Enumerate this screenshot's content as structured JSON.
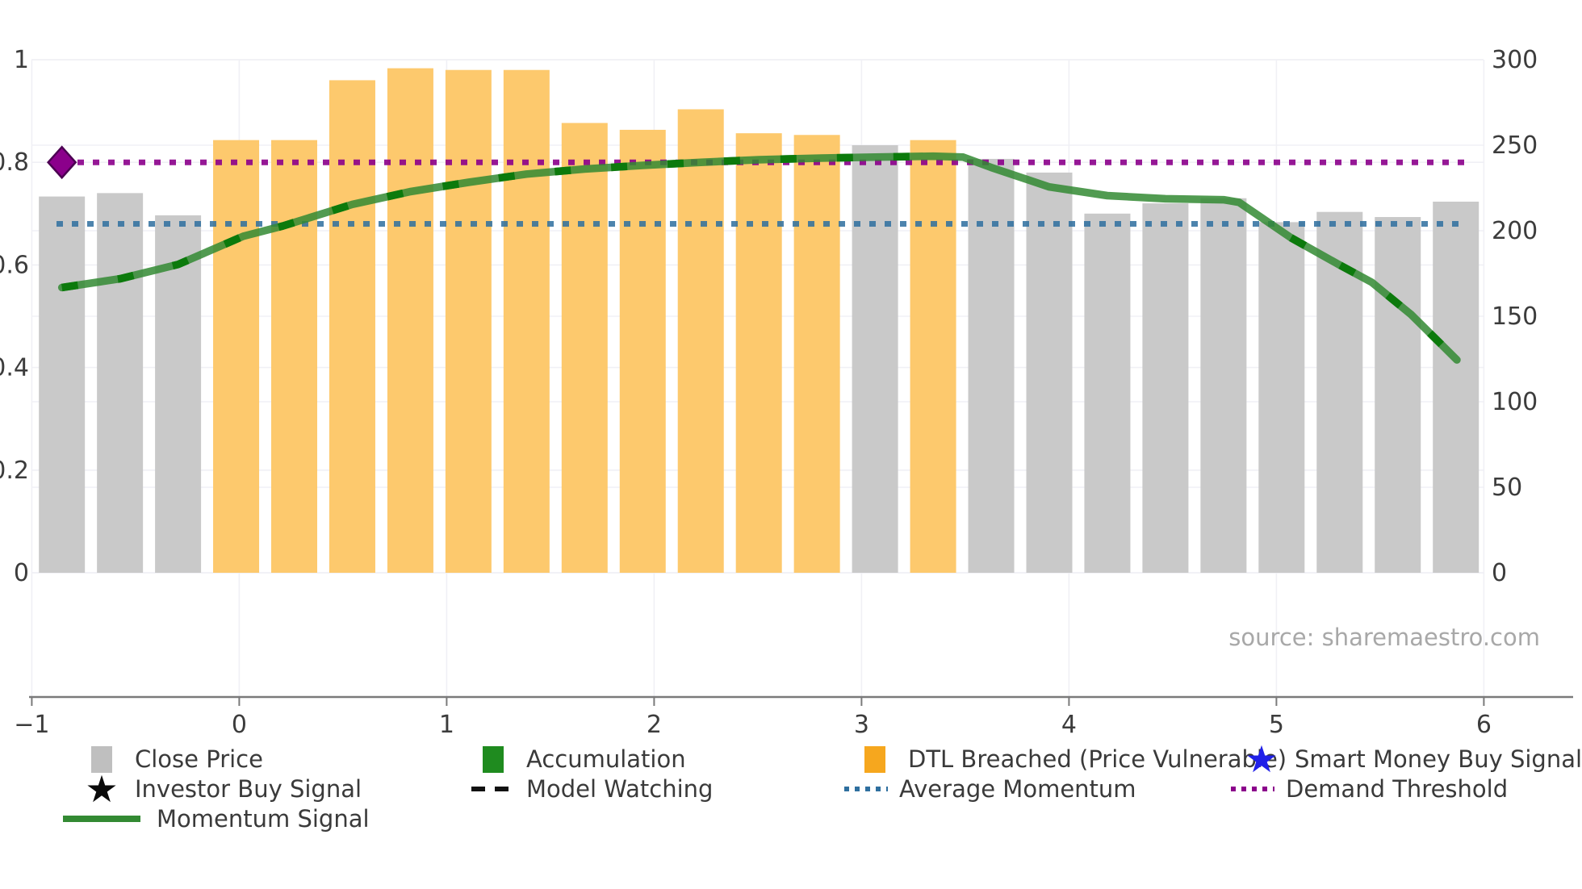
{
  "source_text": "source: sharemaestro.com",
  "colors": {
    "background": "#ffffff",
    "close_price_bar": "#c9c9c9",
    "dtl_breached_bar": "#fdc96d",
    "legend_close_price": "#bfbfbf",
    "legend_accumulation": "#1f8b1f",
    "legend_dtl_breached": "#f6a71e",
    "momentum_line": "#338a33",
    "momentum_dash": "#0c7a0c",
    "average_momentum": "#2e6f9f",
    "demand_threshold": "#8b008b",
    "investor_diamond_fill": "#8b008b",
    "investor_diamond_edge": "#4c0052",
    "smart_money_star": "#2020e8",
    "investor_star": "#0a0a0a",
    "model_watching": "#111111",
    "tick_text": "#3c3c3c",
    "source_text": "#a8a8a8",
    "gridline": "#f0f0f5",
    "spine": "#7a7a7a"
  },
  "chart_data": {
    "type": "bar+line",
    "title": "",
    "x_axis": {
      "ticks": [
        -1,
        0,
        1,
        2,
        3,
        4,
        5,
        6
      ],
      "labels": [
        "−1",
        "0",
        "1",
        "2",
        "3",
        "4",
        "5",
        "6"
      ]
    },
    "y_left_axis": {
      "ticks": [
        0,
        0.2,
        0.4,
        0.6,
        0.8,
        1
      ],
      "labels": [
        "0",
        "0.2",
        "0.4",
        "0.6",
        "0.8",
        "1"
      ],
      "range": [
        0,
        1
      ]
    },
    "y_right_axis": {
      "ticks": [
        0,
        50,
        100,
        150,
        200,
        250,
        300
      ],
      "labels": [
        "0",
        "50",
        "100",
        "150",
        "200",
        "250",
        "300"
      ],
      "range": [
        0,
        300
      ]
    },
    "bars": [
      {
        "x": -0.855,
        "close": 220,
        "dtl_breached": false
      },
      {
        "x": -0.575,
        "close": 222,
        "dtl_breached": false
      },
      {
        "x": -0.295,
        "close": 209,
        "dtl_breached": false
      },
      {
        "x": -0.015,
        "close": 253,
        "dtl_breached": true
      },
      {
        "x": 0.265,
        "close": 253,
        "dtl_breached": true
      },
      {
        "x": 0.545,
        "close": 288,
        "dtl_breached": true
      },
      {
        "x": 0.825,
        "close": 295,
        "dtl_breached": true
      },
      {
        "x": 1.105,
        "close": 294,
        "dtl_breached": true
      },
      {
        "x": 1.385,
        "close": 294,
        "dtl_breached": true
      },
      {
        "x": 1.665,
        "close": 263,
        "dtl_breached": true
      },
      {
        "x": 1.945,
        "close": 259,
        "dtl_breached": true
      },
      {
        "x": 2.225,
        "close": 271,
        "dtl_breached": true
      },
      {
        "x": 2.505,
        "close": 257,
        "dtl_breached": true
      },
      {
        "x": 2.785,
        "close": 256,
        "dtl_breached": true
      },
      {
        "x": 3.065,
        "close": 250,
        "dtl_breached": false
      },
      {
        "x": 3.345,
        "close": 253,
        "dtl_breached": true
      },
      {
        "x": 3.625,
        "close": 242,
        "dtl_breached": false
      },
      {
        "x": 3.905,
        "close": 234,
        "dtl_breached": false
      },
      {
        "x": 4.185,
        "close": 210,
        "dtl_breached": false
      },
      {
        "x": 4.465,
        "close": 216,
        "dtl_breached": false
      },
      {
        "x": 4.745,
        "close": 219,
        "dtl_breached": false
      },
      {
        "x": 5.025,
        "close": 205,
        "dtl_breached": false
      },
      {
        "x": 5.305,
        "close": 211,
        "dtl_breached": false
      },
      {
        "x": 5.585,
        "close": 208,
        "dtl_breached": false
      },
      {
        "x": 5.865,
        "close": 217,
        "dtl_breached": false
      }
    ],
    "momentum_signal": [
      [
        -0.855,
        0.556
      ],
      [
        -0.575,
        0.573
      ],
      [
        -0.295,
        0.601
      ],
      [
        0.02,
        0.656
      ],
      [
        0.21,
        0.676
      ],
      [
        0.545,
        0.718
      ],
      [
        0.825,
        0.743
      ],
      [
        1.105,
        0.761
      ],
      [
        1.385,
        0.777
      ],
      [
        1.665,
        0.787
      ],
      [
        1.945,
        0.794
      ],
      [
        2.225,
        0.8
      ],
      [
        2.505,
        0.805
      ],
      [
        2.785,
        0.808
      ],
      [
        3.065,
        0.81
      ],
      [
        3.345,
        0.812
      ],
      [
        3.49,
        0.81
      ],
      [
        3.625,
        0.79
      ],
      [
        3.905,
        0.752
      ],
      [
        4.185,
        0.735
      ],
      [
        4.465,
        0.729
      ],
      [
        4.745,
        0.727
      ],
      [
        4.82,
        0.722
      ],
      [
        5.07,
        0.653
      ],
      [
        5.3,
        0.601
      ],
      [
        5.46,
        0.566
      ],
      [
        5.65,
        0.503
      ],
      [
        5.87,
        0.415
      ]
    ],
    "model_watching_segments": [
      [
        -0.855,
        3.345
      ],
      [
        5.07,
        5.87
      ]
    ],
    "average_momentum_level": 0.68,
    "demand_threshold_level": 0.8,
    "investor_buy_signal": {
      "x": -0.855,
      "y": 0.8
    }
  },
  "legend": {
    "close_price": "Close Price",
    "accumulation": "Accumulation",
    "dtl_breached": "DTL Breached (Price Vulnerable)",
    "smart_money": "Smart Money Buy Signal",
    "investor_buy": "Investor Buy Signal",
    "model_watching": "Model Watching",
    "average_momentum": "Average Momentum",
    "demand_threshold": "Demand Threshold",
    "momentum_signal": "Momentum Signal",
    "star_glyph": "★"
  }
}
